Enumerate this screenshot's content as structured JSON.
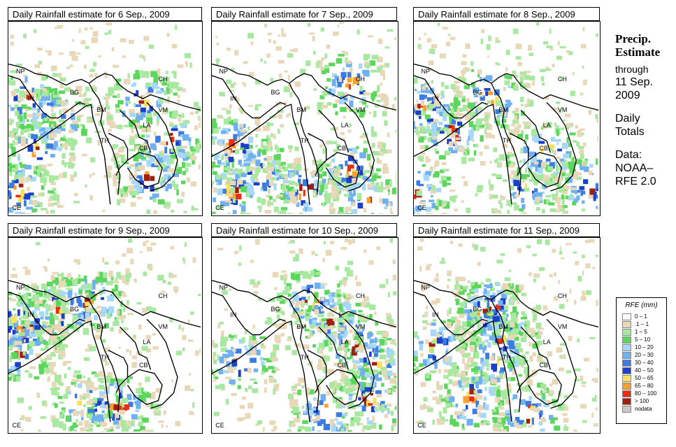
{
  "panels": [
    {
      "title": "Daily Rainfall estimate for  6 Sep., 2009",
      "seed": 6
    },
    {
      "title": "Daily Rainfall estimate for  7 Sep., 2009",
      "seed": 7
    },
    {
      "title": "Daily Rainfall estimate for  8 Sep., 2009",
      "seed": 8
    },
    {
      "title": "Daily Rainfall estimate for  9 Sep., 2009",
      "seed": 9
    },
    {
      "title": "Daily Rainfall estimate for  10 Sep., 2009",
      "seed": 10
    },
    {
      "title": "Daily Rainfall estimate for  11 Sep., 2009",
      "seed": 11
    }
  ],
  "country_labels": [
    "NP",
    "CH",
    "BG",
    "IN",
    "BM",
    "VM",
    "LA",
    "TH",
    "CB",
    "CE"
  ],
  "side": {
    "title1": "Precip.",
    "title2": "Estimate",
    "through": "through",
    "date1": "11 Sep.",
    "date2": "2009",
    "daily1": "Daily",
    "daily2": "Totals",
    "data1": "Data:",
    "data2": "NOAA–",
    "data3": "RFE 2.0"
  },
  "legend": {
    "title": "RFE (mm)",
    "items": [
      {
        "label": "0 – 1",
        "color": "#ffffff"
      },
      {
        "label": ".1 – 1",
        "color": "#e8d8b8"
      },
      {
        "label": "1 – 5",
        "color": "#a8e8a0"
      },
      {
        "label": "5 – 10",
        "color": "#5cd65c"
      },
      {
        "label": "10 – 20",
        "color": "#a8d8f8"
      },
      {
        "label": "20 – 30",
        "color": "#70b0f0"
      },
      {
        "label": "30 – 40",
        "color": "#3c7ce0"
      },
      {
        "label": "40 – 50",
        "color": "#1c40c8"
      },
      {
        "label": "50 – 65",
        "color": "#f8e060"
      },
      {
        "label": "65 – 80",
        "color": "#f8a030"
      },
      {
        "label": "80 – 100",
        "color": "#e83010"
      },
      {
        "label": "> 100",
        "color": "#a02010"
      },
      {
        "label": "nodata",
        "color": "#c8c8c8"
      }
    ]
  }
}
